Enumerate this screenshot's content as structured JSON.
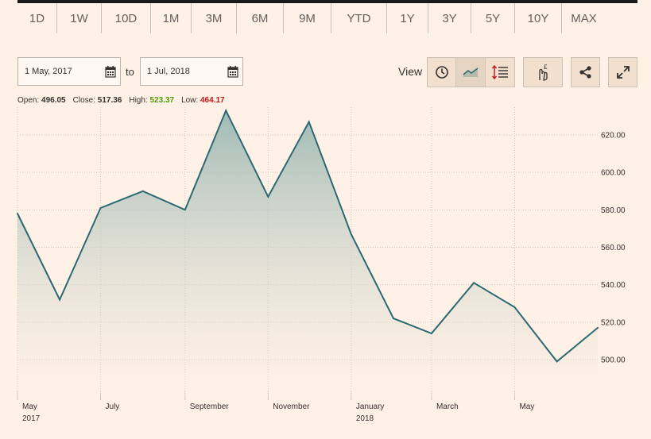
{
  "range_tabs": [
    "1D",
    "1W",
    "10D",
    "1M",
    "3M",
    "6M",
    "9M",
    "YTD",
    "1Y",
    "3Y",
    "5Y",
    "10Y",
    "MAX"
  ],
  "date_range": {
    "from": "1 May, 2017",
    "to_label": "to",
    "to": "1 Jul, 2018"
  },
  "view_label": "View",
  "stats": {
    "open_label": "Open:",
    "open": "496.05",
    "close_label": "Close:",
    "close": "517.36",
    "high_label": "High:",
    "high": "523.37",
    "low_label": "Low:",
    "low": "464.17"
  },
  "colors": {
    "line": "#2b6a72",
    "high": "#4e9a06",
    "low": "#c0161d",
    "background": "#fff1e5"
  },
  "icons": [
    "calendar-icon",
    "clock-icon",
    "line-chart-icon",
    "settings-list-icon",
    "pound-hand-icon",
    "share-icon",
    "expand-icon"
  ],
  "chart_data": {
    "type": "area",
    "x": [
      "2017-05-01",
      "2017-06-01",
      "2017-07-01",
      "2017-08-01",
      "2017-09-01",
      "2017-10-01",
      "2017-11-01",
      "2017-12-01",
      "2018-01-01",
      "2018-02-01",
      "2018-03-01",
      "2018-04-01",
      "2018-05-01",
      "2018-06-01",
      "2018-07-01"
    ],
    "values": [
      578,
      532,
      581,
      590,
      580,
      633,
      587,
      627,
      567,
      522,
      514,
      541,
      528,
      499,
      517
    ],
    "ylim": [
      480,
      635
    ],
    "yticks": [
      "500.00",
      "520.00",
      "540.00",
      "560.00",
      "580.00",
      "600.00",
      "620.00"
    ],
    "xtick_labels": [
      {
        "date": "2017-05-01",
        "label": "May",
        "sub": "2017"
      },
      {
        "date": "2017-07-01",
        "label": "July",
        "sub": ""
      },
      {
        "date": "2017-09-01",
        "label": "September",
        "sub": ""
      },
      {
        "date": "2017-11-01",
        "label": "November",
        "sub": ""
      },
      {
        "date": "2018-01-01",
        "label": "January",
        "sub": "2018"
      },
      {
        "date": "2018-03-01",
        "label": "March",
        "sub": ""
      },
      {
        "date": "2018-05-01",
        "label": "May",
        "sub": ""
      }
    ],
    "grid": true
  }
}
